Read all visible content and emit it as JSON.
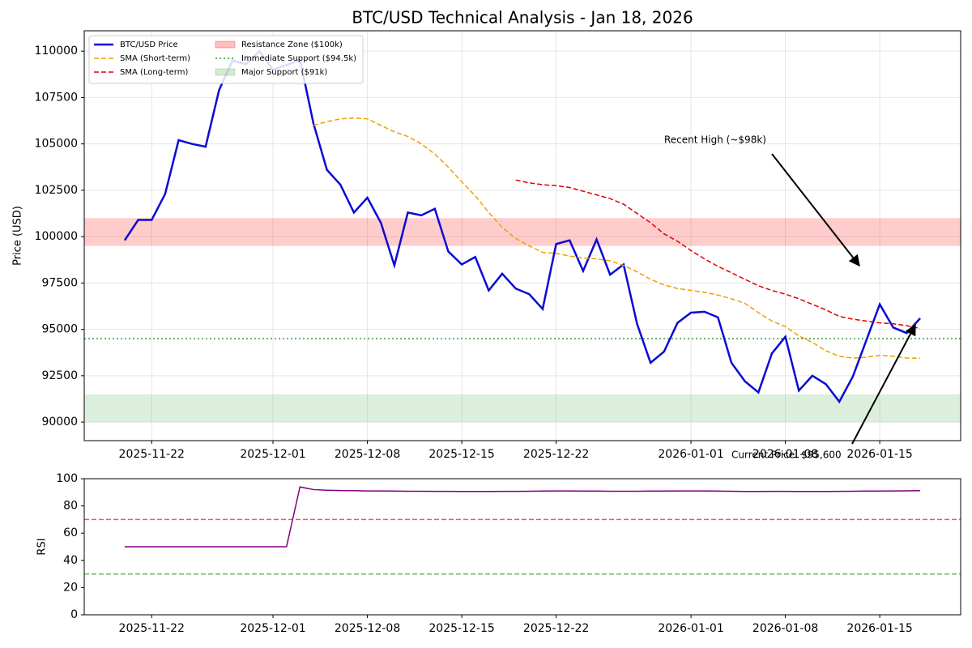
{
  "chart_data": [
    {
      "type": "line",
      "title": "BTC/USD Technical Analysis - Jan 18, 2026",
      "ylabel": "Price (USD)",
      "x": [
        "2025-11-20",
        "2025-11-21",
        "2025-11-22",
        "2025-11-23",
        "2025-11-24",
        "2025-11-25",
        "2025-11-26",
        "2025-11-27",
        "2025-11-28",
        "2025-11-29",
        "2025-11-30",
        "2025-12-01",
        "2025-12-02",
        "2025-12-03",
        "2025-12-04",
        "2025-12-05",
        "2025-12-06",
        "2025-12-07",
        "2025-12-08",
        "2025-12-09",
        "2025-12-10",
        "2025-12-11",
        "2025-12-12",
        "2025-12-13",
        "2025-12-14",
        "2025-12-15",
        "2025-12-16",
        "2025-12-17",
        "2025-12-18",
        "2025-12-19",
        "2025-12-20",
        "2025-12-21",
        "2025-12-22",
        "2025-12-23",
        "2025-12-24",
        "2025-12-25",
        "2025-12-26",
        "2025-12-27",
        "2025-12-28",
        "2025-12-29",
        "2025-12-30",
        "2025-12-31",
        "2026-01-01",
        "2026-01-02",
        "2026-01-03",
        "2026-01-04",
        "2026-01-05",
        "2026-01-06",
        "2026-01-07",
        "2026-01-08",
        "2026-01-09",
        "2026-01-10",
        "2026-01-11",
        "2026-01-12",
        "2026-01-13",
        "2026-01-14",
        "2026-01-15",
        "2026-01-16",
        "2026-01-17",
        "2026-01-18"
      ],
      "series": [
        {
          "name": "BTC/USD Price",
          "color": "#0a0ad6",
          "width": 2.5,
          "dash": "solid",
          "values": [
            99800,
            100900,
            100900,
            102300,
            105200,
            105000,
            104850,
            107900,
            109500,
            109300,
            110000,
            109000,
            109250,
            109550,
            106100,
            103600,
            102800,
            101300,
            102100,
            100750,
            98450,
            101300,
            101150,
            101500,
            99200,
            98500,
            98900,
            97100,
            98000,
            97200,
            96900,
            96100,
            99600,
            99800,
            98150,
            99850,
            97950,
            98500,
            95300,
            93200,
            93800,
            95350,
            95900,
            95950,
            95650,
            93200,
            92200,
            91600,
            93700,
            94600,
            91700,
            92500,
            92050,
            91100,
            92450,
            94400,
            96350,
            95100,
            94800,
            95600
          ]
        },
        {
          "name": "SMA (Short-term)",
          "color": "#f0a000",
          "width": 1.5,
          "dash": "dashed",
          "values": [
            null,
            null,
            null,
            null,
            null,
            null,
            null,
            null,
            null,
            null,
            null,
            null,
            null,
            null,
            106000,
            106200,
            106350,
            106400,
            106350,
            106000,
            105650,
            105400,
            105000,
            104450,
            103750,
            102950,
            102200,
            101300,
            100500,
            99900,
            99500,
            99150,
            99100,
            98950,
            98850,
            98800,
            98700,
            98450,
            98100,
            97700,
            97400,
            97200,
            97100,
            97000,
            96850,
            96650,
            96400,
            95900,
            95450,
            95150,
            94650,
            94300,
            93850,
            93550,
            93450,
            93500,
            93600,
            93550,
            93450,
            93450
          ]
        },
        {
          "name": "SMA (Long-term)",
          "color": "#e00000",
          "width": 1.5,
          "dash": "dashed",
          "values": [
            null,
            null,
            null,
            null,
            null,
            null,
            null,
            null,
            null,
            null,
            null,
            null,
            null,
            null,
            null,
            null,
            null,
            null,
            null,
            null,
            null,
            null,
            null,
            null,
            null,
            null,
            null,
            null,
            null,
            103050,
            102900,
            102800,
            102750,
            102650,
            102450,
            102250,
            102050,
            101750,
            101250,
            100750,
            100150,
            99750,
            99250,
            98800,
            98400,
            98050,
            97700,
            97350,
            97100,
            96900,
            96650,
            96350,
            96050,
            95700,
            95550,
            95450,
            95350,
            95300,
            95200,
            95050
          ]
        }
      ],
      "overlays": [
        {
          "kind": "band",
          "name": "Resistance Zone ($100k)",
          "color": "#ff0000",
          "range": [
            99500,
            101000
          ]
        },
        {
          "kind": "hline",
          "name": "Immediate Support ($94.5k)",
          "color": "#339933",
          "value": 94500,
          "dash": "dotted"
        },
        {
          "kind": "band",
          "name": "Major Support ($91k)",
          "color": "#4caf50",
          "range": [
            90000,
            91500
          ]
        }
      ],
      "annotations": [
        {
          "text": "Recent High (~$98k)"
        },
        {
          "text": "Current Price: $95,600"
        }
      ],
      "xlim": [
        "2025-11-17",
        "2026-01-21"
      ],
      "xticks": [
        "2025-11-22",
        "2025-12-01",
        "2025-12-08",
        "2025-12-15",
        "2025-12-22",
        "2026-01-01",
        "2026-01-08",
        "2026-01-15"
      ],
      "ylim": [
        89000,
        111100
      ],
      "yticks": [
        90000,
        92500,
        95000,
        97500,
        100000,
        102500,
        105000,
        107500,
        110000
      ],
      "grid": true,
      "legend": "upper left"
    },
    {
      "type": "line",
      "ylabel": "RSI",
      "x": [
        "2025-11-20",
        "2025-11-21",
        "2025-11-22",
        "2025-11-23",
        "2025-11-24",
        "2025-11-25",
        "2025-11-26",
        "2025-11-27",
        "2025-11-28",
        "2025-11-29",
        "2025-11-30",
        "2025-12-01",
        "2025-12-02",
        "2025-12-03",
        "2025-12-04",
        "2025-12-05",
        "2025-12-06",
        "2025-12-07",
        "2025-12-08",
        "2025-12-09",
        "2025-12-10",
        "2025-12-11",
        "2025-12-12",
        "2025-12-13",
        "2025-12-14",
        "2025-12-15",
        "2025-12-16",
        "2025-12-17",
        "2025-12-18",
        "2025-12-19",
        "2025-12-20",
        "2025-12-21",
        "2025-12-22",
        "2025-12-23",
        "2025-12-24",
        "2025-12-25",
        "2025-12-26",
        "2025-12-27",
        "2025-12-28",
        "2025-12-29",
        "2025-12-30",
        "2025-12-31",
        "2026-01-01",
        "2026-01-02",
        "2026-01-03",
        "2026-01-04",
        "2026-01-05",
        "2026-01-06",
        "2026-01-07",
        "2026-01-08",
        "2026-01-09",
        "2026-01-10",
        "2026-01-11",
        "2026-01-12",
        "2026-01-13",
        "2026-01-14",
        "2026-01-15",
        "2026-01-16",
        "2026-01-17",
        "2026-01-18"
      ],
      "series": [
        {
          "color": "#800080",
          "width": 1.5,
          "dash": "solid",
          "values": [
            50,
            50,
            50,
            50,
            50,
            50,
            50,
            50,
            50,
            50,
            50,
            50,
            50,
            94,
            92,
            91.5,
            91.3,
            91.2,
            91,
            91,
            90.9,
            90.8,
            90.8,
            90.7,
            90.7,
            90.6,
            90.6,
            90.6,
            90.7,
            90.7,
            90.8,
            90.9,
            91,
            91,
            90.9,
            90.9,
            90.8,
            90.8,
            90.8,
            90.9,
            90.9,
            91,
            91,
            91,
            90.9,
            90.8,
            90.6,
            90.6,
            90.7,
            90.7,
            90.6,
            90.6,
            90.6,
            90.7,
            90.8,
            90.9,
            90.9,
            91,
            91.1,
            91.2
          ]
        }
      ],
      "overlays": [
        {
          "kind": "hline",
          "color": "#e06060",
          "value": 70,
          "dash": "dashed"
        },
        {
          "kind": "hline",
          "color": "#5fb35f",
          "value": 30,
          "dash": "dashed"
        }
      ],
      "xlim": [
        "2025-11-17",
        "2026-01-21"
      ],
      "xticks": [
        "2025-11-22",
        "2025-12-01",
        "2025-12-08",
        "2025-12-15",
        "2025-12-22",
        "2026-01-01",
        "2026-01-08",
        "2026-01-15"
      ],
      "ylim": [
        0,
        100
      ],
      "yticks": [
        0,
        20,
        40,
        60,
        80,
        100
      ],
      "grid": false
    }
  ]
}
